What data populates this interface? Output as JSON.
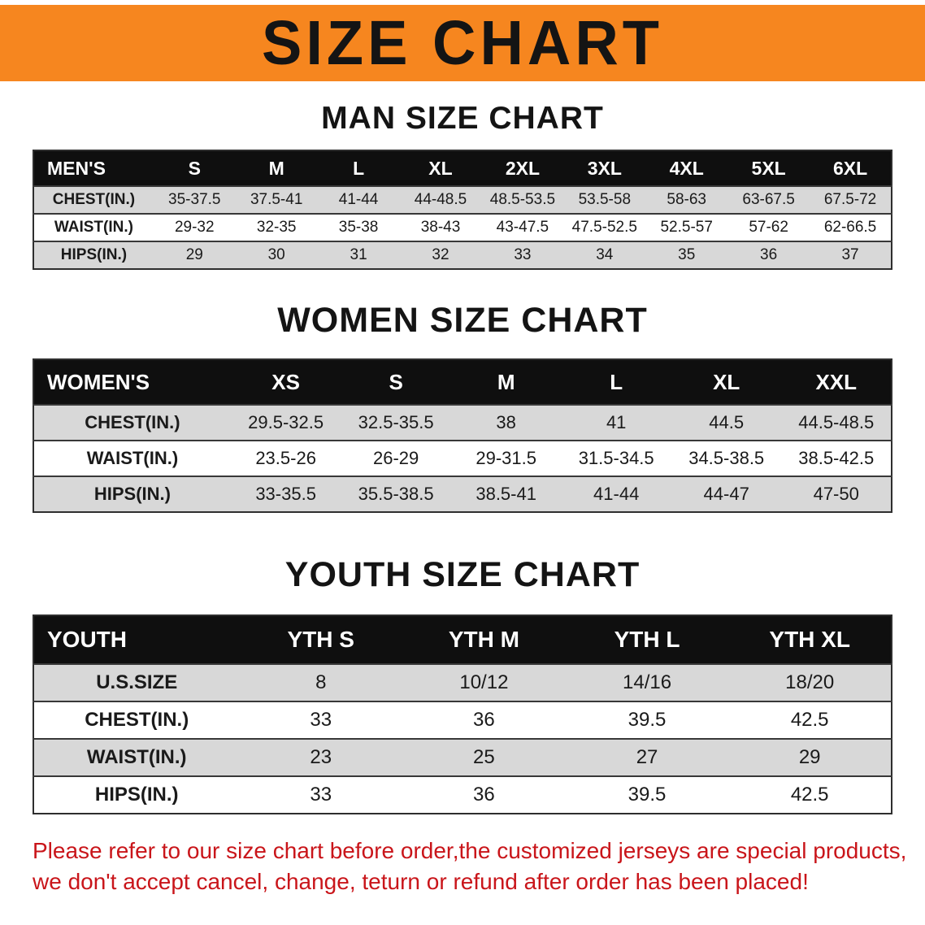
{
  "banner": {
    "title": "SIZE CHART",
    "bg_color": "#f6861f"
  },
  "chart_data": [
    {
      "type": "table",
      "title": "MAN SIZE CHART",
      "header": [
        "MEN'S",
        "S",
        "M",
        "L",
        "XL",
        "2XL",
        "3XL",
        "4XL",
        "5XL",
        "6XL"
      ],
      "rows": [
        [
          "CHEST(IN.)",
          "35-37.5",
          "37.5-41",
          "41-44",
          "44-48.5",
          "48.5-53.5",
          "53.5-58",
          "58-63",
          "63-67.5",
          "67.5-72"
        ],
        [
          "WAIST(IN.)",
          "29-32",
          "32-35",
          "35-38",
          "38-43",
          "43-47.5",
          "47.5-52.5",
          "52.5-57",
          "57-62",
          "62-66.5"
        ],
        [
          "HIPS(IN.)",
          "29",
          "30",
          "31",
          "32",
          "33",
          "34",
          "35",
          "36",
          "37"
        ]
      ]
    },
    {
      "type": "table",
      "title": "WOMEN SIZE CHART",
      "header": [
        "WOMEN'S",
        "XS",
        "S",
        "M",
        "L",
        "XL",
        "XXL"
      ],
      "rows": [
        [
          "CHEST(IN.)",
          "29.5-32.5",
          "32.5-35.5",
          "38",
          "41",
          "44.5",
          "44.5-48.5"
        ],
        [
          "WAIST(IN.)",
          "23.5-26",
          "26-29",
          "29-31.5",
          "31.5-34.5",
          "34.5-38.5",
          "38.5-42.5"
        ],
        [
          "HIPS(IN.)",
          "33-35.5",
          "35.5-38.5",
          "38.5-41",
          "41-44",
          "44-47",
          "47-50"
        ]
      ]
    },
    {
      "type": "table",
      "title": "YOUTH SIZE CHART",
      "header": [
        "YOUTH",
        "YTH S",
        "YTH M",
        "YTH L",
        "YTH XL"
      ],
      "rows": [
        [
          "U.S.SIZE",
          "8",
          "10/12",
          "14/16",
          "18/20"
        ],
        [
          "CHEST(IN.)",
          "33",
          "36",
          "39.5",
          "42.5"
        ],
        [
          "WAIST(IN.)",
          "23",
          "25",
          "27",
          "29"
        ],
        [
          "HIPS(IN.)",
          "33",
          "36",
          "39.5",
          "42.5"
        ]
      ]
    }
  ],
  "footer": {
    "line1": "Please refer to our size chart before order,the customized jerseys are special products,",
    "line2": "we don't accept cancel, change, teturn or refund after order has been placed!",
    "color": "#c9151a"
  }
}
